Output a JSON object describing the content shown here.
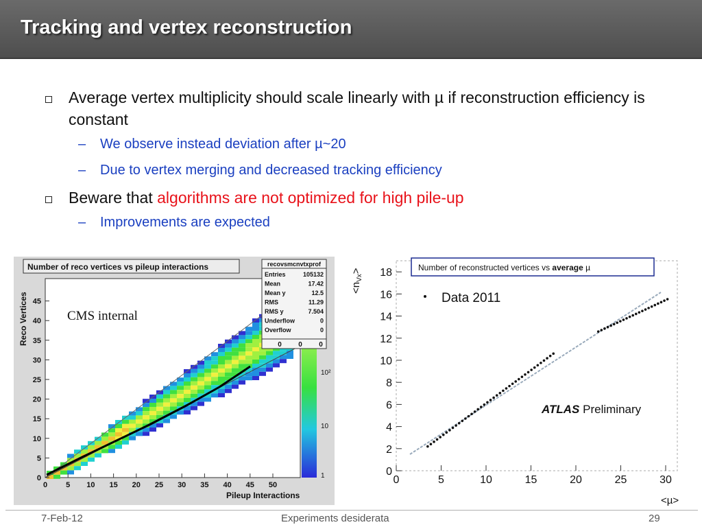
{
  "title": "Tracking and vertex reconstruction",
  "bullets": {
    "b1_text": "Average vertex multiplicity should scale linearly with µ if reconstruction efficiency is constant",
    "b1_sub1": "We observe instead deviation after µ~20",
    "b1_sub2": "Due to vertex merging and decreased tracking efficiency",
    "b2_prefix": "Beware that ",
    "b2_highlight": "algorithms are not optimized for high pile-up",
    "b2_sub1": "Improvements are expected"
  },
  "cms_plot": {
    "title": "Number of reco vertices vs pileup interactions",
    "label": "CMS internal",
    "xlabel": "Pileup Interactions",
    "ylabel": "Reco Vertices",
    "x_ticks": [
      "0",
      "5",
      "10",
      "15",
      "20",
      "25",
      "30",
      "35",
      "40",
      "45",
      "50"
    ],
    "y_ticks": [
      "0",
      "5",
      "10",
      "15",
      "20",
      "25",
      "30",
      "35",
      "40",
      "45"
    ],
    "z_ticks": [
      "10²",
      "10",
      "1"
    ],
    "stats": {
      "name": "recovsmcnvtxprof",
      "rows": [
        {
          "k": "Entries",
          "v": "105132"
        },
        {
          "k": "Mean",
          "v": "17.42"
        },
        {
          "k": "Mean y",
          "v": "12.5"
        },
        {
          "k": "RMS",
          "v": "11.29"
        },
        {
          "k": "RMS y",
          "v": "7.504"
        },
        {
          "k": "Underflow",
          "v": "0"
        },
        {
          "k": "Overflow",
          "v": "0"
        }
      ],
      "bottom": [
        "0",
        "0",
        "0"
      ]
    }
  },
  "atlas_plot": {
    "caption_prefix": "Number of reconstructed vertices vs ",
    "caption_bold": "average",
    "caption_mu": "µ",
    "legend": "Data 2011",
    "atlas_bold": "ATLAS",
    "atlas_rest": "Preliminary",
    "xlabel": "<µ>",
    "ylabel": "<n",
    "ylabel_sub": "Vx",
    "ylabel_end": ">",
    "x_ticks": [
      "0",
      "5",
      "10",
      "15",
      "20",
      "25",
      "30"
    ],
    "y_ticks": [
      "0",
      "2",
      "4",
      "6",
      "8",
      "10",
      "12",
      "14",
      "16",
      "18"
    ]
  },
  "footer": {
    "date": "7-Feb-12",
    "center": "Experiments desiderata",
    "page": "29"
  }
}
